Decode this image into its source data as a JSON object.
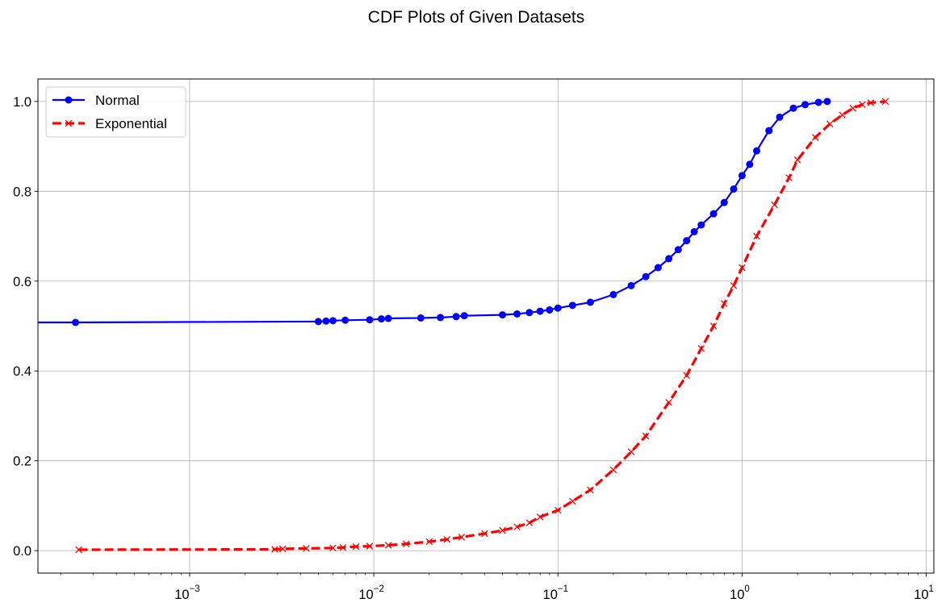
{
  "chart_data": {
    "type": "line",
    "title": "CDF Plots of Given Datasets",
    "xlabel": "",
    "ylabel": "",
    "xscale": "log",
    "xlim": [
      0.00015,
      11
    ],
    "ylim": [
      -0.05,
      1.05
    ],
    "grid": true,
    "legend_position": "top-left",
    "x_ticks": [
      {
        "base": "10",
        "exp": "−3",
        "value": 0.001
      },
      {
        "base": "10",
        "exp": "−2",
        "value": 0.01
      },
      {
        "base": "10",
        "exp": "−1",
        "value": 0.1
      },
      {
        "base": "10",
        "exp": "0",
        "value": 1
      },
      {
        "base": "10",
        "exp": "1",
        "value": 10
      }
    ],
    "y_ticks": [
      {
        "label": "0.0",
        "value": 0.0
      },
      {
        "label": "0.2",
        "value": 0.2
      },
      {
        "label": "0.4",
        "value": 0.4
      },
      {
        "label": "0.6",
        "value": 0.6
      },
      {
        "label": "0.8",
        "value": 0.8
      },
      {
        "label": "1.0",
        "value": 1.0
      }
    ],
    "series": [
      {
        "name": "Normal",
        "color": "#0000ff",
        "marker": "circle",
        "linestyle": "solid",
        "x": [
          8e-05,
          0.00024,
          0.005,
          0.0055,
          0.006,
          0.007,
          0.0095,
          0.011,
          0.012,
          0.018,
          0.023,
          0.028,
          0.031,
          0.05,
          0.06,
          0.07,
          0.08,
          0.09,
          0.1,
          0.12,
          0.15,
          0.2,
          0.25,
          0.3,
          0.35,
          0.4,
          0.45,
          0.5,
          0.55,
          0.6,
          0.7,
          0.8,
          0.9,
          1.0,
          1.1,
          1.2,
          1.4,
          1.6,
          1.9,
          2.2,
          2.6,
          2.9
        ],
        "y": [
          0.508,
          0.508,
          0.51,
          0.511,
          0.512,
          0.513,
          0.514,
          0.516,
          0.517,
          0.518,
          0.519,
          0.521,
          0.523,
          0.525,
          0.527,
          0.53,
          0.533,
          0.536,
          0.54,
          0.546,
          0.553,
          0.57,
          0.59,
          0.61,
          0.63,
          0.65,
          0.67,
          0.69,
          0.71,
          0.725,
          0.75,
          0.775,
          0.805,
          0.835,
          0.86,
          0.89,
          0.935,
          0.965,
          0.985,
          0.993,
          0.998,
          1.0
        ]
      },
      {
        "name": "Exponential",
        "color": "#ff0000",
        "marker": "x",
        "linestyle": "dashed",
        "x": [
          0.00025,
          0.0029,
          0.0032,
          0.0043,
          0.006,
          0.0068,
          0.008,
          0.0095,
          0.012,
          0.015,
          0.02,
          0.025,
          0.03,
          0.04,
          0.05,
          0.06,
          0.07,
          0.08,
          0.1,
          0.12,
          0.15,
          0.2,
          0.25,
          0.3,
          0.4,
          0.5,
          0.6,
          0.7,
          0.8,
          0.9,
          1.0,
          1.2,
          1.5,
          1.8,
          2.0,
          2.5,
          3.0,
          3.5,
          4.0,
          4.5,
          5.0,
          6.0
        ],
        "y": [
          0.002,
          0.003,
          0.004,
          0.005,
          0.006,
          0.007,
          0.009,
          0.01,
          0.012,
          0.015,
          0.02,
          0.025,
          0.03,
          0.038,
          0.045,
          0.053,
          0.062,
          0.075,
          0.09,
          0.11,
          0.135,
          0.18,
          0.22,
          0.255,
          0.33,
          0.39,
          0.45,
          0.5,
          0.55,
          0.59,
          0.63,
          0.7,
          0.77,
          0.83,
          0.87,
          0.92,
          0.95,
          0.97,
          0.985,
          0.993,
          0.997,
          1.0
        ]
      }
    ]
  }
}
